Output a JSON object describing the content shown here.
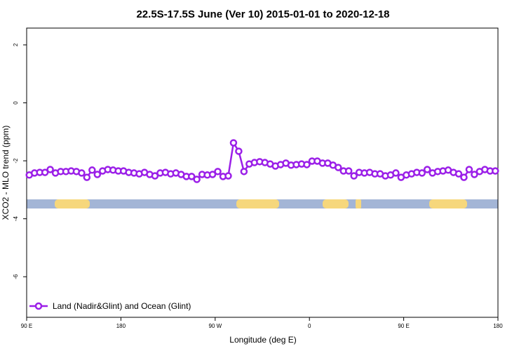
{
  "chart_data": {
    "type": "line",
    "title": "22.5S-17.5S June (Ver 10)   2015-01-01 to 2020-12-18",
    "x_label": "Longitude (deg E)",
    "y_label": "XCO2 - MLO trend (ppm)",
    "xlim": [
      90,
      540
    ],
    "ylim": [
      -7.4,
      2.58
    ],
    "xticks": [
      {
        "value": 90,
        "label": "90 E"
      },
      180,
      {
        "value": 270,
        "label": "90 W"
      },
      {
        "value": 360,
        "label": "0"
      },
      {
        "value": 450,
        "label": "90 E"
      },
      {
        "value": 540,
        "label": "180"
      }
    ],
    "yticks": [
      -6,
      -4,
      -2,
      0,
      2
    ],
    "legend_position": "bottom-left",
    "x": [
      92.5,
      97.5,
      102.5,
      107.5,
      112.5,
      117.5,
      122.5,
      127.5,
      132.5,
      137.5,
      142.5,
      147.5,
      152.5,
      157.5,
      162.5,
      167.5,
      172.5,
      177.5,
      182.5,
      187.5,
      192.5,
      197.5,
      202.5,
      207.5,
      212.5,
      217.5,
      222.5,
      227.5,
      232.5,
      237.5,
      242.5,
      247.5,
      252.5,
      257.5,
      262.5,
      267.5,
      272.5,
      277.5,
      282.5,
      287.5,
      292.5,
      297.5,
      302.5,
      307.5,
      312.5,
      317.5,
      322.5,
      327.5,
      332.5,
      337.5,
      342.5,
      347.5,
      352.5,
      357.5,
      362.5,
      367.5,
      372.5,
      377.5,
      382.5,
      387.5,
      392.5,
      397.5,
      402.5,
      407.5,
      412.5,
      417.5,
      422.5,
      427.5,
      432.5,
      437.5,
      442.5,
      447.5,
      452.5,
      457.5,
      462.5,
      467.5,
      472.5,
      477.5,
      482.5,
      487.5,
      492.5,
      497.5,
      502.5,
      507.5,
      512.5,
      517.5,
      522.5,
      527.5,
      532.5,
      537.5
    ],
    "series": [
      {
        "name": "Land (Nadir&Glint) and Ocean (Glint)",
        "color": "#9b1fe8",
        "values": [
          -2.49,
          -2.42,
          -2.4,
          -2.4,
          -2.3,
          -2.42,
          -2.37,
          -2.37,
          -2.35,
          -2.37,
          -2.42,
          -2.57,
          -2.32,
          -2.47,
          -2.35,
          -2.3,
          -2.32,
          -2.35,
          -2.35,
          -2.4,
          -2.42,
          -2.45,
          -2.4,
          -2.47,
          -2.52,
          -2.42,
          -2.4,
          -2.45,
          -2.42,
          -2.47,
          -2.54,
          -2.54,
          -2.64,
          -2.47,
          -2.49,
          -2.47,
          -2.37,
          -2.54,
          -2.52,
          -1.38,
          -1.67,
          -2.37,
          -2.11,
          -2.06,
          -2.03,
          -2.06,
          -2.11,
          -2.18,
          -2.13,
          -2.08,
          -2.15,
          -2.13,
          -2.11,
          -2.13,
          -2.01,
          -2.01,
          -2.08,
          -2.08,
          -2.15,
          -2.23,
          -2.35,
          -2.35,
          -2.52,
          -2.4,
          -2.42,
          -2.4,
          -2.45,
          -2.45,
          -2.52,
          -2.49,
          -2.42,
          -2.57,
          -2.49,
          -2.45,
          -2.4,
          -2.42,
          -2.3,
          -2.42,
          -2.37,
          -2.35,
          -2.32,
          -2.4,
          -2.45,
          -2.57,
          -2.3,
          -2.47,
          -2.37,
          -2.3,
          -2.35,
          -2.35
        ]
      }
    ]
  }
}
